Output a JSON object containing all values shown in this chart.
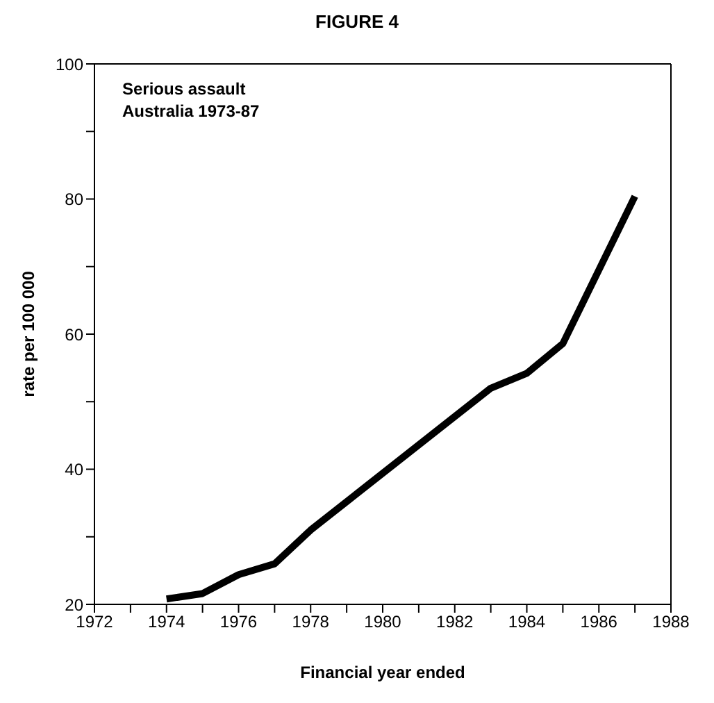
{
  "chart_data": {
    "type": "line",
    "title": "FIGURE 4",
    "xlabel": "Financial year ended",
    "ylabel": "rate per 100 000",
    "annotations": [
      "Serious assault",
      "Australia 1973-87"
    ],
    "x": [
      1974,
      1975,
      1976,
      1977,
      1978,
      1983,
      1984,
      1985,
      1987
    ],
    "series": [
      {
        "color": "#000000",
        "values": [
          20.8,
          21.6,
          24.4,
          26,
          31,
          52,
          54.2,
          58.6,
          80.4
        ]
      }
    ],
    "xlim": [
      1972,
      1988
    ],
    "xticks": [
      1972,
      {
        "value": 1973,
        "label": null
      },
      1974,
      {
        "value": 1975,
        "label": null
      },
      1976,
      {
        "value": 1977,
        "label": null
      },
      1978,
      {
        "value": 1979,
        "label": null
      },
      1980,
      {
        "value": 1981,
        "label": null
      },
      1982,
      {
        "value": 1983,
        "label": null
      },
      1984,
      {
        "value": 1985,
        "label": null
      },
      1986,
      {
        "value": 1987,
        "label": null
      },
      1988
    ],
    "ylim": [
      20,
      100
    ],
    "yticks": [
      20,
      {
        "value": 30,
        "label": null
      },
      40,
      {
        "value": 50,
        "label": null
      },
      60,
      {
        "value": 70,
        "label": null
      },
      80,
      {
        "value": 90,
        "label": null
      },
      100
    ],
    "grid": false,
    "legend": false,
    "marker": "none",
    "line_style": "solid"
  }
}
